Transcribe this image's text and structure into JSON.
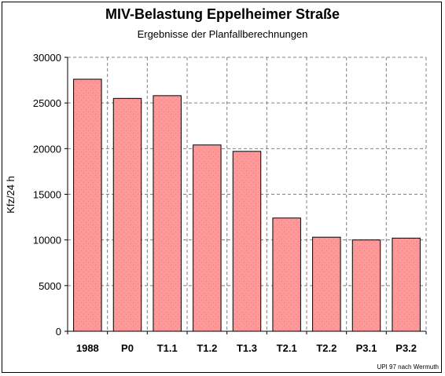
{
  "chart_data": {
    "type": "bar",
    "title": "MIV-Belastung Eppelheimer Straße",
    "subtitle": "Ergebnisse der Planfallberechnungen",
    "ylabel": "Kfz/24 h",
    "xlabel": "",
    "ylim": [
      0,
      30000
    ],
    "yticks": [
      0,
      5000,
      10000,
      15000,
      20000,
      25000,
      30000
    ],
    "categories": [
      "1988",
      "P0",
      "T1.1",
      "T1.2",
      "T1.3",
      "T2.1",
      "T2.2",
      "P3.1",
      "P3.2"
    ],
    "values": [
      27600,
      25500,
      25800,
      20400,
      19700,
      12400,
      10300,
      10000,
      10200
    ],
    "grid": true,
    "bar_color": "#ff9999",
    "source_note": "UPI 97 nach Wermuth"
  }
}
